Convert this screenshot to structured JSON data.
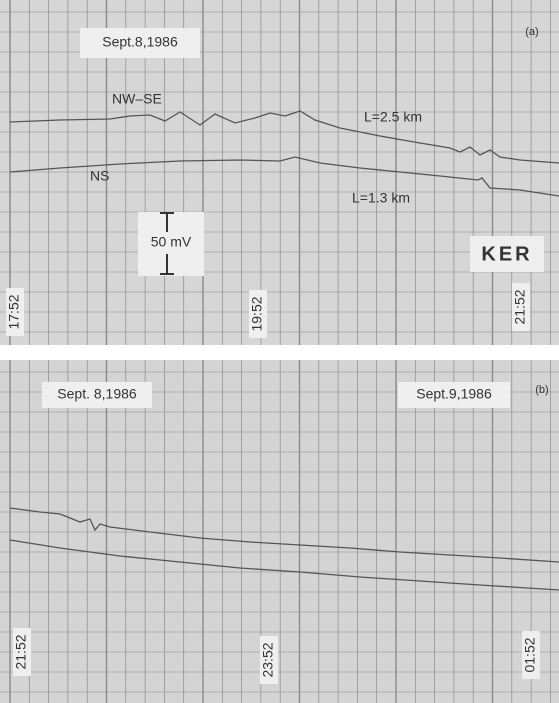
{
  "panel_a": {
    "date": "Sept.8,1986",
    "tag": "(a)",
    "trace_labels": [
      "NW–SE",
      "NS"
    ],
    "lengths": [
      "L=2.5 km",
      "L=1.3 km"
    ],
    "scale": "50 mV",
    "station": "KER",
    "times": [
      "17:52",
      "19:52",
      "21:52"
    ]
  },
  "panel_b": {
    "dates": [
      "Sept. 8,1986",
      "Sept.9,1986"
    ],
    "tag": "(b)",
    "times": [
      "21:52",
      "23:52",
      "01:52"
    ]
  }
}
